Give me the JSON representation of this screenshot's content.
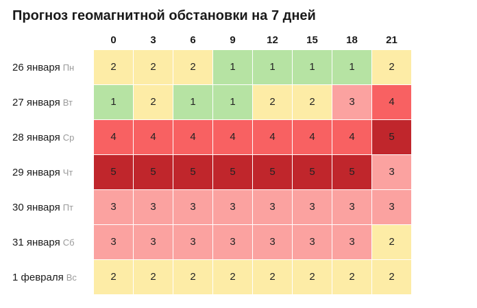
{
  "title": "Прогноз геомагнитной обстановки на 7 дней",
  "chart_data": {
    "type": "heatmap",
    "title": "Прогноз геомагнитной обстановки на 7 дней",
    "x": [
      "0",
      "3",
      "6",
      "9",
      "12",
      "15",
      "18",
      "21"
    ],
    "rows": [
      {
        "date": "26 января",
        "weekday": "Пн",
        "values": [
          2,
          2,
          2,
          1,
          1,
          1,
          1,
          2
        ]
      },
      {
        "date": "27 января",
        "weekday": "Вт",
        "values": [
          1,
          2,
          1,
          1,
          2,
          2,
          3,
          4
        ]
      },
      {
        "date": "28 января",
        "weekday": "Ср",
        "values": [
          4,
          4,
          4,
          4,
          4,
          4,
          4,
          5
        ]
      },
      {
        "date": "29 января",
        "weekday": "Чт",
        "values": [
          5,
          5,
          5,
          5,
          5,
          5,
          5,
          3
        ]
      },
      {
        "date": "30 января",
        "weekday": "Пт",
        "values": [
          3,
          3,
          3,
          3,
          3,
          3,
          3,
          3
        ]
      },
      {
        "date": "31 января",
        "weekday": "Сб",
        "values": [
          3,
          3,
          3,
          3,
          3,
          3,
          3,
          2
        ]
      },
      {
        "date": "1 февраля",
        "weekday": "Вс",
        "values": [
          2,
          2,
          2,
          2,
          2,
          2,
          2,
          2
        ]
      }
    ],
    "colors": {
      "1": "#b6e3a3",
      "2": "#fdeca6",
      "3": "#fba2a0",
      "4": "#f86162",
      "5": "#c0262c"
    }
  }
}
